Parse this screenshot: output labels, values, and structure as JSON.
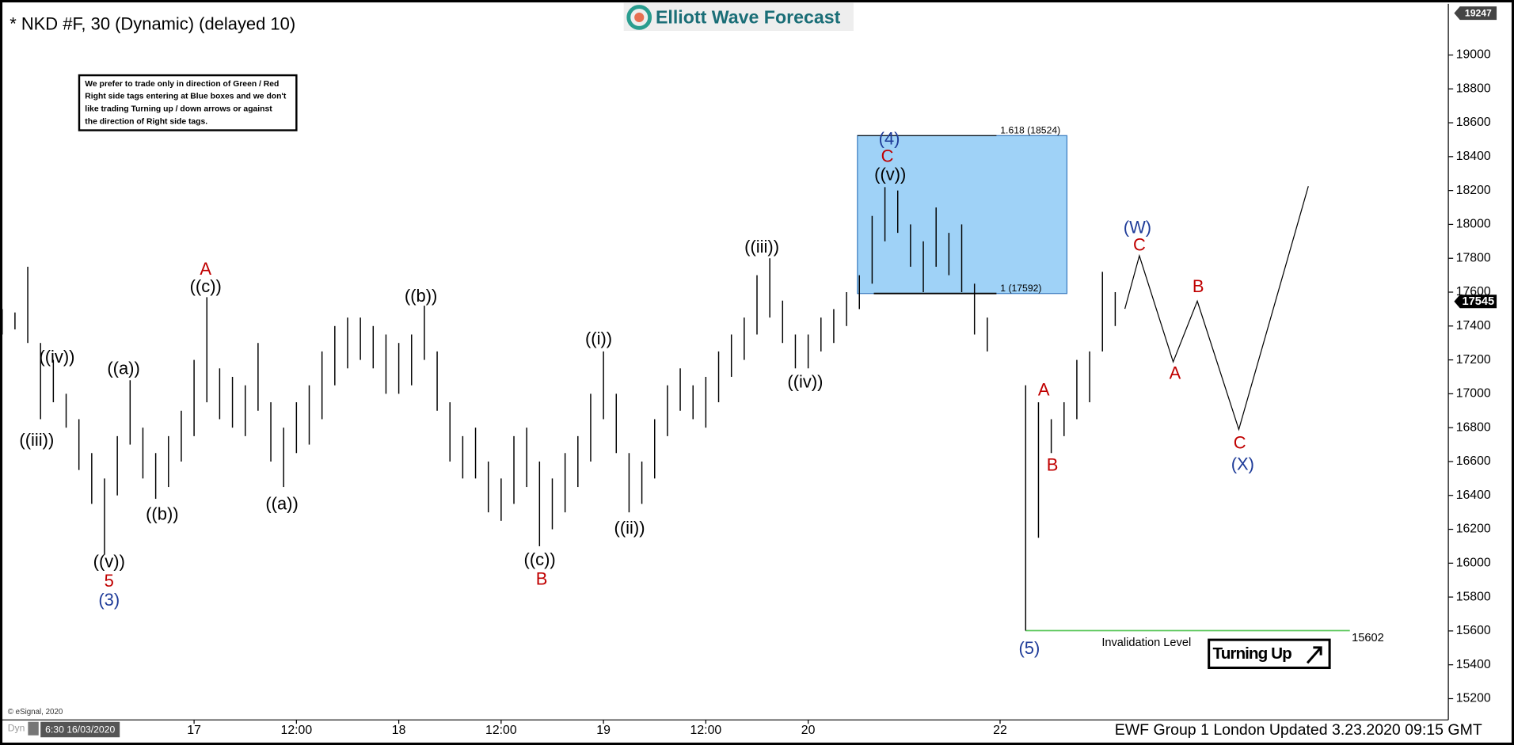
{
  "chart_data": {
    "type": "ohlc",
    "title": "* NKD #F, 30 (Dynamic) (delayed 10)",
    "logo": "Elliott Wave Forecast",
    "note": [
      "We prefer to trade only in direction of Green / Red",
      "Right side tags entering at Blue boxes and we don't",
      "like trading Turning up / down arrows or against",
      "the direction of Right side tags."
    ],
    "footer": "EWF Group 1 London Updated 3.23.2020 09:15 GMT",
    "copyright": "© eSignal, 2020",
    "mode_label": "Dyn",
    "date_label": "6:30 16/03/2020",
    "bar_color": "#000000",
    "categories": [
      null,
      null,
      null,
      null,
      null,
      null,
      null,
      null,
      null,
      null,
      null,
      null,
      null,
      null,
      null,
      "17",
      null,
      null,
      null,
      null,
      null,
      null,
      null,
      "12:00",
      null,
      null,
      null,
      null,
      null,
      null,
      null,
      "18",
      null,
      null,
      null,
      null,
      null,
      null,
      null,
      "12:00",
      null,
      null,
      null,
      null,
      null,
      null,
      null,
      "19",
      null,
      null,
      null,
      null,
      null,
      null,
      null,
      "12:00",
      null,
      null,
      null,
      null,
      null,
      null,
      null,
      "20",
      null,
      null,
      null,
      null,
      null,
      null,
      null,
      null,
      null,
      null,
      null,
      null,
      null,
      null,
      "22",
      null,
      null,
      null,
      null,
      null,
      null,
      null,
      null,
      null
    ],
    "high": [
      17500,
      17480,
      17750,
      17300,
      17200,
      17000,
      16850,
      16650,
      16500,
      16750,
      17080,
      16800,
      16650,
      16750,
      16900,
      17200,
      17570,
      17150,
      17100,
      17050,
      17300,
      16950,
      16800,
      16950,
      17050,
      17250,
      17400,
      17450,
      17450,
      17400,
      17350,
      17300,
      17350,
      17520,
      17250,
      16950,
      16750,
      16800,
      16600,
      16500,
      16750,
      16800,
      16600,
      16500,
      16650,
      16750,
      17000,
      17250,
      17000,
      16650,
      16600,
      16850,
      17050,
      17150,
      17050,
      17100,
      17250,
      17350,
      17450,
      17700,
      17800,
      17550,
      17350,
      17350,
      17450,
      17500,
      17600,
      17700,
      18050,
      18220,
      18200,
      18000,
      17900,
      18100,
      17950,
      18000,
      17650,
      17450,
      null,
      null,
      17050,
      16950,
      16850,
      16950,
      17200,
      17250,
      17720,
      17600
    ],
    "low": [
      17350,
      17380,
      17300,
      16850,
      16950,
      16800,
      16550,
      16350,
      16050,
      16400,
      16700,
      16500,
      16380,
      16450,
      16600,
      16750,
      16950,
      16850,
      16800,
      16750,
      16900,
      16600,
      16450,
      16650,
      16700,
      16850,
      17050,
      17150,
      17200,
      17150,
      17000,
      17000,
      17050,
      17200,
      16900,
      16600,
      16500,
      16500,
      16300,
      16250,
      16350,
      16450,
      16100,
      16200,
      16300,
      16450,
      16600,
      16850,
      16650,
      16300,
      16350,
      16500,
      16750,
      16900,
      16850,
      16800,
      16950,
      17100,
      17200,
      17350,
      17450,
      17300,
      17150,
      17150,
      17250,
      17300,
      17400,
      17500,
      17650,
      17900,
      17950,
      17750,
      17600,
      17750,
      17700,
      17600,
      17350,
      17250,
      null,
      null,
      15602,
      16150,
      16650,
      16750,
      16850,
      16950,
      17250,
      17400
    ],
    "ylim": [
      15100,
      19300
    ],
    "yticks": [
      15200,
      15400,
      15600,
      15800,
      16000,
      16200,
      16400,
      16600,
      16800,
      17000,
      17200,
      17400,
      17600,
      17800,
      18000,
      18200,
      18400,
      18600,
      18800,
      19000
    ],
    "top_price": 19247,
    "last_price": 17545,
    "box": {
      "color": "#9fd2f7",
      "top": {
        "value": 18524,
        "label": "1.618 (18524)"
      },
      "bottom": {
        "value": 17592,
        "label": "1 (17592)"
      }
    },
    "invalidation": {
      "value": 15602,
      "label": "Invalidation Level",
      "color": "#5cc85c"
    },
    "signal": "Turning Up",
    "wave_labels": [
      {
        "text": "((iv))",
        "color": "#000000"
      },
      {
        "text": "((iii))",
        "color": "#000000"
      },
      {
        "text": "((v))",
        "color": "#000000"
      },
      {
        "text": "5",
        "color": "#c00000"
      },
      {
        "text": "(3)",
        "color": "#1f3c99"
      },
      {
        "text": "((a))",
        "color": "#000000"
      },
      {
        "text": "((b))",
        "color": "#000000"
      },
      {
        "text": "A",
        "color": "#c00000"
      },
      {
        "text": "((c))",
        "color": "#000000"
      },
      {
        "text": "((a))",
        "color": "#000000"
      },
      {
        "text": "((b))",
        "color": "#000000"
      },
      {
        "text": "((c))",
        "color": "#000000"
      },
      {
        "text": "B",
        "color": "#c00000"
      },
      {
        "text": "((i))",
        "color": "#000000"
      },
      {
        "text": "((ii))",
        "color": "#000000"
      },
      {
        "text": "((iii))",
        "color": "#000000"
      },
      {
        "text": "((iv))",
        "color": "#000000"
      },
      {
        "text": "(4)",
        "color": "#1f3c99"
      },
      {
        "text": "C",
        "color": "#c00000"
      },
      {
        "text": "((v))",
        "color": "#000000"
      },
      {
        "text": "A",
        "color": "#c00000"
      },
      {
        "text": "B",
        "color": "#c00000"
      },
      {
        "text": "(W)",
        "color": "#1f3c99"
      },
      {
        "text": "C",
        "color": "#c00000"
      },
      {
        "text": "A",
        "color": "#c00000"
      },
      {
        "text": "B",
        "color": "#c00000"
      },
      {
        "text": "C",
        "color": "#c00000"
      },
      {
        "text": "(X)",
        "color": "#1f3c99"
      },
      {
        "text": "(5)",
        "color": "#1f3c99"
      }
    ]
  }
}
